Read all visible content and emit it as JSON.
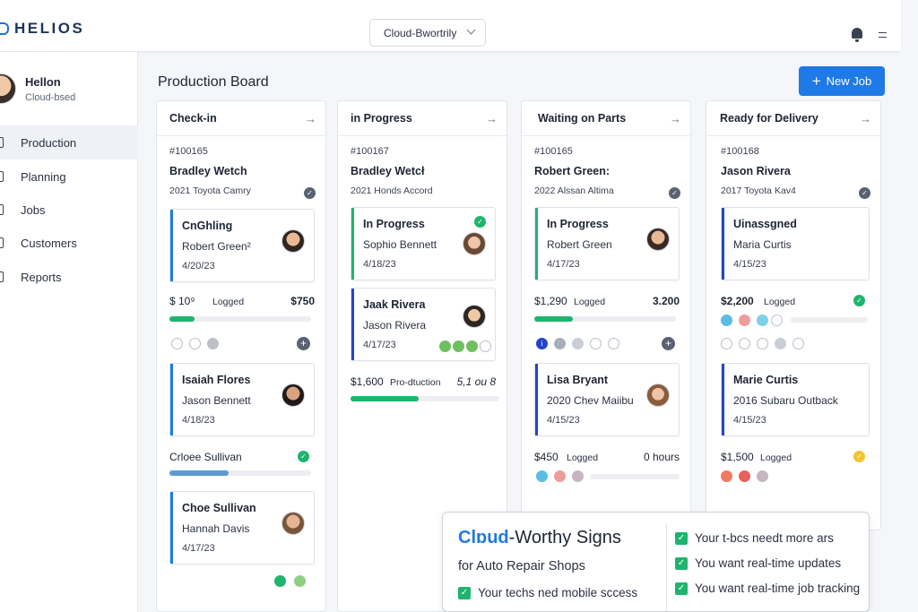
{
  "app": {
    "name": "HELIOS",
    "workspace": "Cloud-Bwortrily"
  },
  "user": {
    "name": "Hellon",
    "subtitle": "Cloud-bsed"
  },
  "nav": [
    "Production",
    "Planning",
    "Jobs",
    "Customers",
    "Reports"
  ],
  "page": {
    "title": "Production Board",
    "new_job": "New Job"
  },
  "columns": [
    {
      "title": "Check-in",
      "job": {
        "num": "#100165",
        "name": "Bradley Wetch",
        "car": "2021 Toyota Camry"
      },
      "cards": [
        {
          "title": "CnGhling",
          "name": "Robert Green²",
          "date": "4/20/23"
        },
        {
          "title": "Isaiah Flores",
          "name": "Jason Bennett",
          "date": "4/18/23"
        },
        {
          "title": "Choe Sullivan",
          "name": "Hannah Davis",
          "date": "4/17/23"
        }
      ],
      "fin": {
        "amount": "$ 10⁹",
        "label": "Logged",
        "right": "$750",
        "progress": 0.18
      },
      "second": {
        "label": "Crloee Sullivan",
        "progress": 0.42
      }
    },
    {
      "title": "in Progress",
      "job": {
        "num": "#100167",
        "name": "Bradley Wetcł",
        "car": "2021 Honds Accord"
      },
      "cards": [
        {
          "title": "In Progress",
          "name": "Sophio Bennett",
          "date": "4/18/23"
        },
        {
          "title": "Jaak Rivera",
          "name": "Jason Rivera",
          "date": "4/17/23"
        }
      ],
      "fin": {
        "amount": "$1,600",
        "label": "Pro-dtuction",
        "right": "5,1 ou 8",
        "progress": 0.46
      }
    },
    {
      "title": "Waiting on Parts",
      "job": {
        "num": "#100165",
        "name": "Robert Green:",
        "car": "2022 Alssan Altima"
      },
      "cards": [
        {
          "title": "In Progress",
          "name": "Robert Green",
          "date": "4/17/23"
        },
        {
          "title": "Lisa Bryant",
          "name": "2020 Chev Maiibu",
          "date": "4/15/23"
        }
      ],
      "fin": {
        "amount": "$1,290",
        "label": "Logged",
        "right": "3.200",
        "progress": 0.27
      },
      "fin2": {
        "amount": "$450",
        "label": "Logged",
        "right": "0 hours"
      }
    },
    {
      "title": "Ready for Delivery",
      "job": {
        "num": "#100168",
        "name": "Jason Rivera",
        "car": "2017 Toyota Kav4"
      },
      "cards": [
        {
          "title": "Uinassgned",
          "name": "Maria Curtis",
          "date": "4/15/23"
        },
        {
          "title": "Marie Curtis",
          "name": "2016 Subaru Outback",
          "date": "4/15/23"
        }
      ],
      "fin": {
        "amount": "$2,200",
        "label": "Logged"
      },
      "fin2": {
        "amount": "$1,500",
        "label": "Logged"
      }
    }
  ],
  "promo": {
    "brand": "Clɒud",
    "headline_rest": "-Worthy Signs",
    "sub": "for Auto Repair Shops",
    "items": [
      "Your techs ned mobile sccess",
      "Your t-bcs needt more ars",
      "You want real-time updates",
      "You want real-time job tracking"
    ]
  },
  "colors": {
    "accent": "#1e7ae6",
    "green": "#1fb46e",
    "navy_bar": "#2445c8"
  }
}
